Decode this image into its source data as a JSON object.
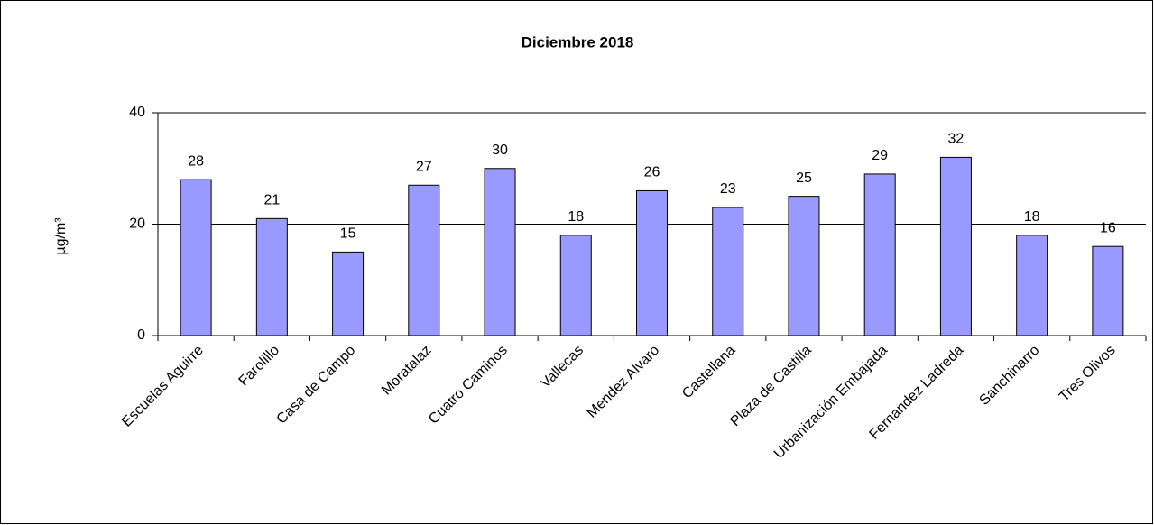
{
  "chart_data": {
    "type": "bar",
    "title": "Diciembre 2018",
    "y_label": "µg/m³",
    "categories": [
      "Escuelas Aguirre",
      "Farolillo",
      "Casa de Campo",
      "Moratalaz",
      "Cuatro Caminos",
      "Vallecas",
      "Mendez Alvaro",
      "Castellana",
      "Plaza de Castilla",
      "Urbanización Embajada",
      "Fernandez Ladreda",
      "Sanchinarro",
      "Tres Olivos"
    ],
    "values": [
      28,
      21,
      15,
      27,
      30,
      18,
      26,
      23,
      25,
      29,
      32,
      18,
      16
    ],
    "color": "#9999ff",
    "ylim": [
      0,
      40
    ],
    "yticks": [
      0,
      20,
      40
    ],
    "grid": true
  }
}
